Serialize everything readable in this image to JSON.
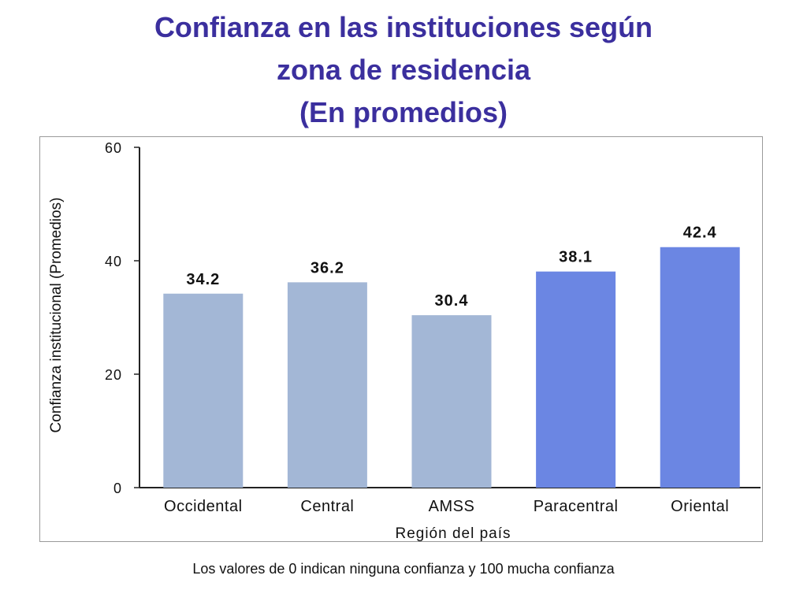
{
  "title_lines": [
    "Confianza en las instituciones según",
    "zona de residencia",
    "(En promedios)"
  ],
  "footnote": "Los valores de 0 indican ninguna confianza y 100 mucha confianza",
  "colors": {
    "title": "#3b2f9e",
    "bar_light": "#a3b7d6",
    "bar_dark": "#6b86e3"
  },
  "chart_data": {
    "type": "bar",
    "categories": [
      "Occidental",
      "Central",
      "AMSS",
      "Paracentral",
      "Oriental"
    ],
    "values": [
      34.2,
      36.2,
      30.4,
      38.1,
      42.4
    ],
    "data_labels": [
      "34.2",
      "36.2",
      "30.4",
      "38.1",
      "42.4"
    ],
    "bar_colors": [
      "#a3b7d6",
      "#a3b7d6",
      "#a3b7d6",
      "#6b86e3",
      "#6b86e3"
    ],
    "xlabel": "Región del país",
    "ylabel": "Confianza institucional (Promedios)",
    "ylim": [
      0,
      60
    ],
    "yticks": [
      0,
      20,
      40,
      60
    ],
    "grid": false,
    "legend": "none"
  }
}
